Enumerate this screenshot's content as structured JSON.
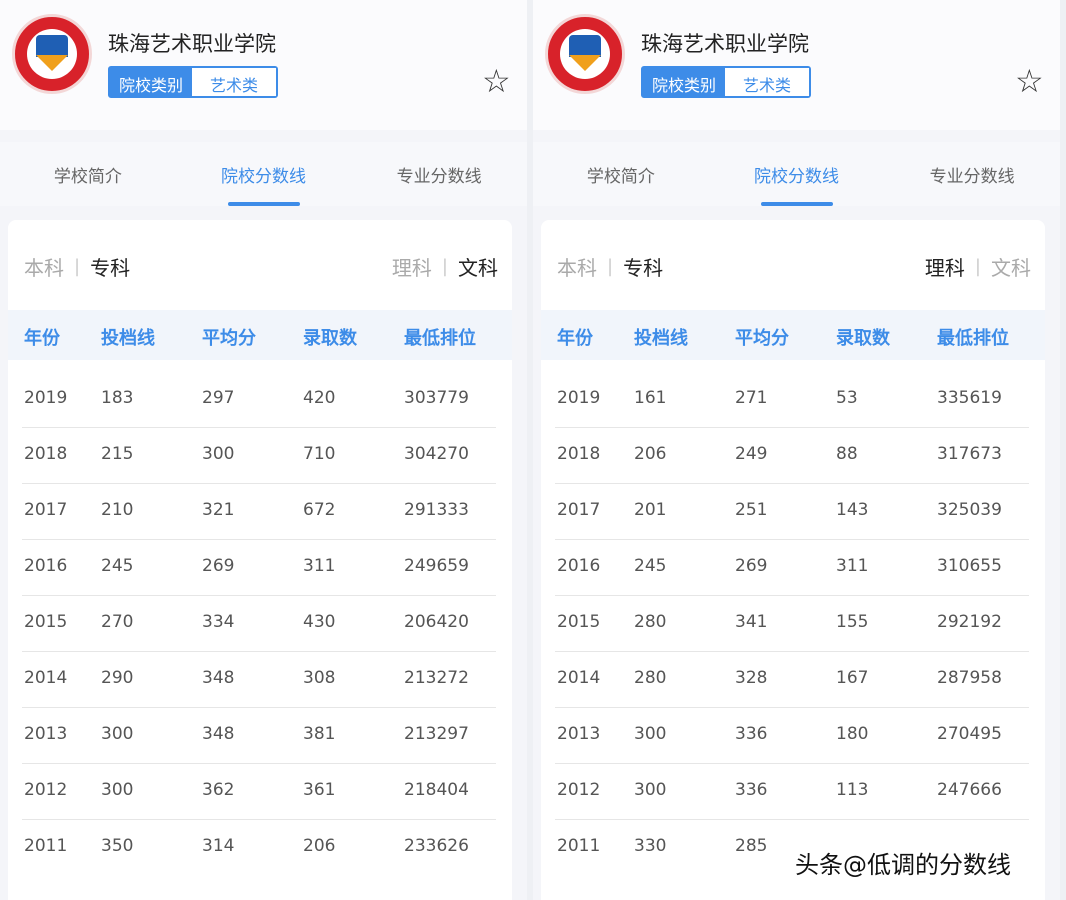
{
  "panels": [
    {
      "school": "珠海艺术职业学院",
      "badge_key": "院校类别",
      "badge_value": "艺术类",
      "tabs": [
        "学校简介",
        "院校分数线",
        "专业分数线"
      ],
      "active_tab": 1,
      "level": [
        "本科",
        "专科"
      ],
      "level_active": 1,
      "subject": [
        "理科",
        "文科"
      ],
      "subject_active": 1,
      "columns": [
        "年份",
        "投档线",
        "平均分",
        "录取数",
        "最低排位"
      ],
      "rows": [
        [
          "2019",
          "183",
          "297",
          "420",
          "303779"
        ],
        [
          "2018",
          "215",
          "300",
          "710",
          "304270"
        ],
        [
          "2017",
          "210",
          "321",
          "672",
          "291333"
        ],
        [
          "2016",
          "245",
          "269",
          "311",
          "249659"
        ],
        [
          "2015",
          "270",
          "334",
          "430",
          "206420"
        ],
        [
          "2014",
          "290",
          "348",
          "308",
          "213272"
        ],
        [
          "2013",
          "300",
          "348",
          "381",
          "213297"
        ],
        [
          "2012",
          "300",
          "362",
          "361",
          "218404"
        ],
        [
          "2011",
          "350",
          "314",
          "206",
          "233626"
        ]
      ]
    },
    {
      "school": "珠海艺术职业学院",
      "badge_key": "院校类别",
      "badge_value": "艺术类",
      "tabs": [
        "学校简介",
        "院校分数线",
        "专业分数线"
      ],
      "active_tab": 1,
      "level": [
        "本科",
        "专科"
      ],
      "level_active": 1,
      "subject": [
        "理科",
        "文科"
      ],
      "subject_active": 0,
      "columns": [
        "年份",
        "投档线",
        "平均分",
        "录取数",
        "最低排位"
      ],
      "rows": [
        [
          "2019",
          "161",
          "271",
          "53",
          "335619"
        ],
        [
          "2018",
          "206",
          "249",
          "88",
          "317673"
        ],
        [
          "2017",
          "201",
          "251",
          "143",
          "325039"
        ],
        [
          "2016",
          "245",
          "269",
          "311",
          "310655"
        ],
        [
          "2015",
          "280",
          "341",
          "155",
          "292192"
        ],
        [
          "2014",
          "280",
          "328",
          "167",
          "287958"
        ],
        [
          "2013",
          "300",
          "336",
          "180",
          "270495"
        ],
        [
          "2012",
          "300",
          "336",
          "113",
          "247666"
        ],
        [
          "2011",
          "330",
          "285",
          "",
          ""
        ]
      ]
    }
  ],
  "watermark": "头条@低调的分数线",
  "colors": {
    "accent": "#3d8ce8",
    "logo_red": "#d8222a"
  }
}
